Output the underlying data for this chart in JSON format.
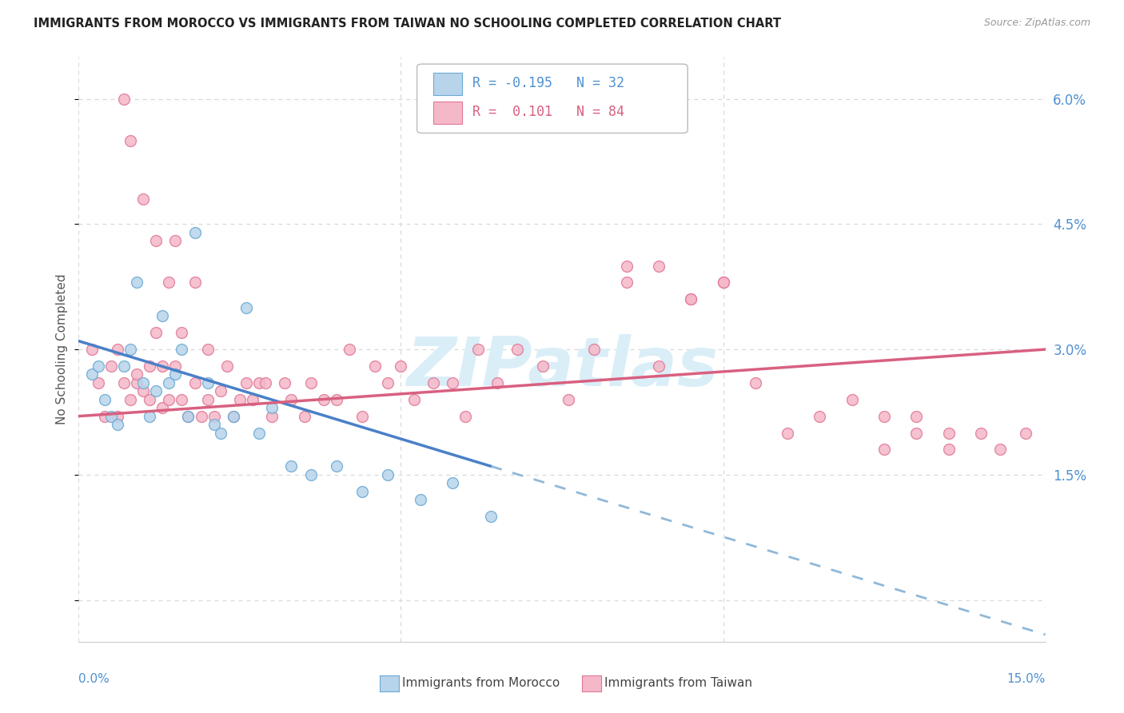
{
  "title": "IMMIGRANTS FROM MOROCCO VS IMMIGRANTS FROM TAIWAN NO SCHOOLING COMPLETED CORRELATION CHART",
  "source": "Source: ZipAtlas.com",
  "ylabel": "No Schooling Completed",
  "xlim": [
    0.0,
    0.15
  ],
  "ylim": [
    -0.005,
    0.065
  ],
  "plot_ylim": [
    0.0,
    0.065
  ],
  "yticks": [
    0.0,
    0.015,
    0.03,
    0.045,
    0.06
  ],
  "ytick_labels": [
    "",
    "1.5%",
    "3.0%",
    "4.5%",
    "6.0%"
  ],
  "xticks": [
    0.0,
    0.05,
    0.1,
    0.15
  ],
  "color_morocco_fill": "#b8d4ea",
  "color_morocco_edge": "#6aaad4",
  "color_taiwan_fill": "#f5b8c8",
  "color_taiwan_edge": "#e07898",
  "color_blue_line": "#4a80c8",
  "color_pink_line": "#d86080",
  "color_dashed": "#90b8d8",
  "color_grid": "#d8d8d8",
  "color_tick": "#5090d0",
  "watermark": "ZIPatlas",
  "watermark_color": "#daeef8",
  "morocco_r": "-0.195",
  "morocco_n": "32",
  "taiwan_r": "0.101",
  "taiwan_n": "84",
  "morocco_x": [
    0.002,
    0.003,
    0.004,
    0.005,
    0.006,
    0.007,
    0.008,
    0.009,
    0.01,
    0.011,
    0.012,
    0.013,
    0.014,
    0.015,
    0.016,
    0.017,
    0.018,
    0.02,
    0.021,
    0.022,
    0.024,
    0.026,
    0.028,
    0.03,
    0.033,
    0.036,
    0.04,
    0.044,
    0.048,
    0.053,
    0.058,
    0.064
  ],
  "morocco_y": [
    0.027,
    0.028,
    0.024,
    0.022,
    0.021,
    0.028,
    0.03,
    0.038,
    0.026,
    0.022,
    0.025,
    0.034,
    0.026,
    0.027,
    0.03,
    0.022,
    0.044,
    0.026,
    0.021,
    0.02,
    0.022,
    0.035,
    0.02,
    0.023,
    0.016,
    0.015,
    0.016,
    0.013,
    0.015,
    0.012,
    0.014,
    0.01
  ],
  "taiwan_x": [
    0.002,
    0.003,
    0.004,
    0.005,
    0.006,
    0.006,
    0.007,
    0.007,
    0.008,
    0.008,
    0.009,
    0.009,
    0.01,
    0.01,
    0.011,
    0.011,
    0.012,
    0.012,
    0.013,
    0.013,
    0.014,
    0.014,
    0.015,
    0.015,
    0.016,
    0.016,
    0.017,
    0.018,
    0.018,
    0.019,
    0.02,
    0.02,
    0.021,
    0.022,
    0.023,
    0.024,
    0.025,
    0.026,
    0.027,
    0.028,
    0.029,
    0.03,
    0.032,
    0.033,
    0.035,
    0.036,
    0.038,
    0.04,
    0.042,
    0.044,
    0.046,
    0.048,
    0.05,
    0.052,
    0.055,
    0.058,
    0.06,
    0.062,
    0.065,
    0.068,
    0.072,
    0.076,
    0.08,
    0.085,
    0.09,
    0.095,
    0.1,
    0.105,
    0.11,
    0.115,
    0.12,
    0.125,
    0.13,
    0.135,
    0.085,
    0.09,
    0.095,
    0.1,
    0.125,
    0.13,
    0.135,
    0.14,
    0.143,
    0.147
  ],
  "taiwan_y": [
    0.03,
    0.026,
    0.022,
    0.028,
    0.03,
    0.022,
    0.026,
    0.06,
    0.024,
    0.055,
    0.026,
    0.027,
    0.025,
    0.048,
    0.024,
    0.028,
    0.032,
    0.043,
    0.023,
    0.028,
    0.038,
    0.024,
    0.028,
    0.043,
    0.024,
    0.032,
    0.022,
    0.026,
    0.038,
    0.022,
    0.024,
    0.03,
    0.022,
    0.025,
    0.028,
    0.022,
    0.024,
    0.026,
    0.024,
    0.026,
    0.026,
    0.022,
    0.026,
    0.024,
    0.022,
    0.026,
    0.024,
    0.024,
    0.03,
    0.022,
    0.028,
    0.026,
    0.028,
    0.024,
    0.026,
    0.026,
    0.022,
    0.03,
    0.026,
    0.03,
    0.028,
    0.024,
    0.03,
    0.038,
    0.028,
    0.036,
    0.038,
    0.026,
    0.02,
    0.022,
    0.024,
    0.022,
    0.02,
    0.02,
    0.04,
    0.04,
    0.036,
    0.038,
    0.018,
    0.022,
    0.018,
    0.02,
    0.018,
    0.02
  ]
}
